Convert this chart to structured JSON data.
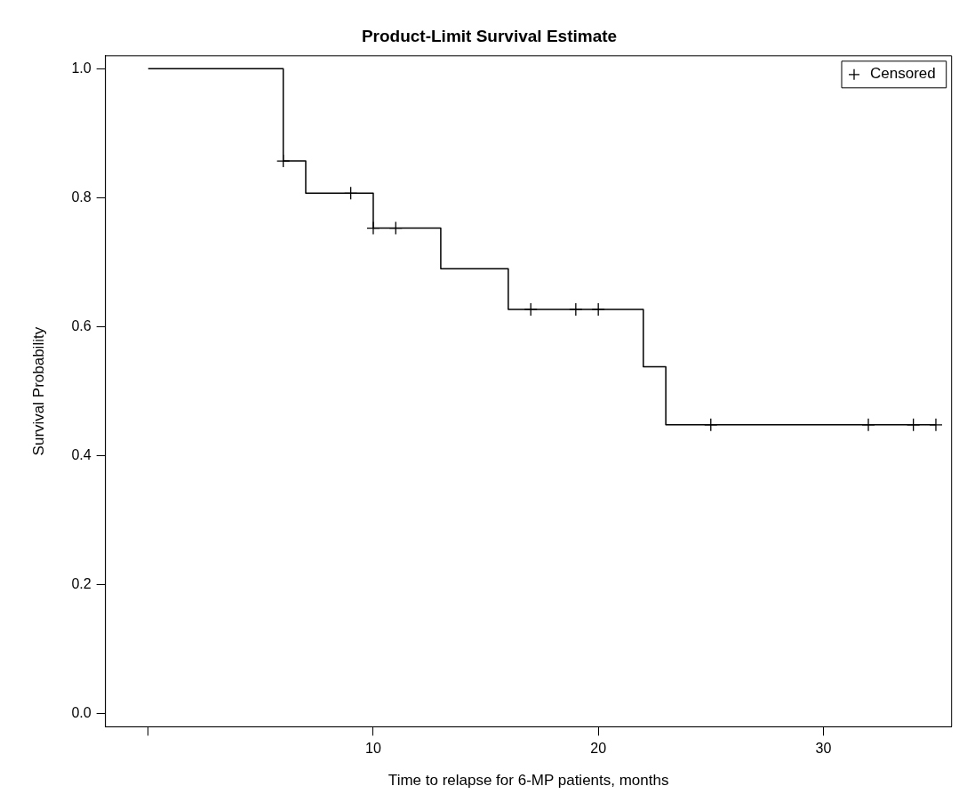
{
  "chart_data": {
    "type": "step",
    "title": "Product-Limit Survival Estimate",
    "xlabel": "Time to relapse for 6-MP patients, months",
    "ylabel": "Survival Probability",
    "xlim": [
      -1.9,
      35.7
    ],
    "xticks": [
      {
        "value": 0,
        "label": null
      },
      10,
      20,
      30
    ],
    "ylim": [
      -0.02,
      1.02
    ],
    "yticks": [
      {
        "value": 0,
        "label": "0.0"
      },
      0.2,
      0.4,
      0.6,
      0.8,
      {
        "value": 1,
        "label": "1.0"
      }
    ],
    "grid": false,
    "legend": "top right",
    "series": [
      {
        "type": "step",
        "color": "#000000",
        "marker": "none",
        "x": [
          0,
          6,
          7,
          10,
          13,
          16,
          22,
          23,
          35
        ],
        "values": [
          1.0,
          0.857,
          0.807,
          0.753,
          0.69,
          0.627,
          0.538,
          0.448,
          0.448
        ]
      },
      {
        "type": "scatter",
        "name": "Censored",
        "color": "#000000",
        "marker": "cross",
        "x": [
          6,
          9,
          10,
          11,
          17,
          19,
          20,
          25,
          32,
          34,
          35
        ],
        "values": [
          0.857,
          0.807,
          0.753,
          0.753,
          0.627,
          0.627,
          0.627,
          0.448,
          0.448,
          0.448,
          0.448
        ]
      }
    ]
  }
}
